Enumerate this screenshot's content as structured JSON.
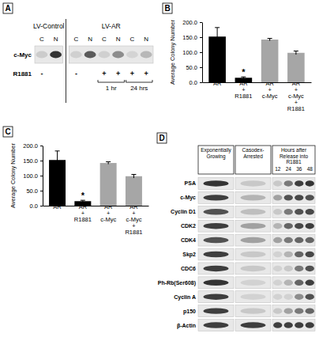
{
  "panel_labels": [
    "A",
    "B",
    "C",
    "D"
  ],
  "chart_data": [
    {
      "type": "bar",
      "categories": [
        "AR",
        "AR + R1881",
        "AR + c-Myc",
        "AR + c-Myc + R1881"
      ],
      "values": [
        152,
        15,
        142,
        98
      ],
      "errors": [
        30,
        3,
        4,
        6
      ],
      "colors": [
        "#000000",
        "#000000",
        "#a6a6a6",
        "#a6a6a6"
      ],
      "y_label": "Average Colony Number",
      "ylim": [
        0,
        200
      ],
      "yticks": [
        {
          "value": 0,
          "label": "0.0"
        },
        {
          "value": 50,
          "label": "50.0"
        },
        {
          "value": 100,
          "label": "100.0"
        },
        {
          "value": 150,
          "label": "150.0"
        },
        {
          "value": 200,
          "label": "200.0"
        }
      ],
      "annotations": [
        {
          "text": "*",
          "category": "AR + R1881"
        }
      ]
    },
    {
      "type": "bar",
      "categories": [
        "AR",
        "AR + R1881",
        "AR + c-Myc",
        "AR + c-Myc + R1881"
      ],
      "values": [
        152,
        15,
        142,
        98
      ],
      "errors": [
        30,
        3,
        4,
        6
      ],
      "colors": [
        "#000000",
        "#000000",
        "#a6a6a6",
        "#a6a6a6"
      ],
      "y_label": "Average Colony Number",
      "ylim": [
        0,
        200
      ],
      "yticks": [
        {
          "value": 0,
          "label": "0.0"
        },
        {
          "value": 50,
          "label": "50.0"
        },
        {
          "value": 100,
          "label": "100.0"
        },
        {
          "value": 150,
          "label": "150.0"
        },
        {
          "value": 200,
          "label": "200.0"
        }
      ],
      "annotations": [
        {
          "text": "*",
          "category": "AR + R1881"
        }
      ]
    }
  ],
  "blot_a": {
    "column_groups": [
      {
        "label": "LV-Control",
        "lanes": 2
      },
      {
        "label": "LV-AR",
        "lanes": 6
      }
    ],
    "lanes": [
      "C",
      "N",
      "C",
      "N",
      "C",
      "N",
      "C",
      "N"
    ],
    "rows": [
      {
        "label": "c-Myc",
        "intensity": [
          0.08,
          0.85,
          0.06,
          0.65,
          0.06,
          0.4,
          0.04,
          0.18
        ]
      }
    ],
    "treatment": {
      "label": "R1881",
      "values": [
        "-",
        null,
        "-",
        null,
        "+",
        "+",
        "+",
        "+"
      ]
    },
    "time_labels": [
      {
        "label": "1 hr",
        "lanes": [
          4,
          5
        ]
      },
      {
        "label": "24 hrs",
        "lanes": [
          6,
          7
        ]
      }
    ]
  },
  "blot_d": {
    "column_groups": [
      {
        "label": "Exponentially Growing",
        "lanes": 1
      },
      {
        "label": "Casodex-Arrested",
        "lanes": 1
      },
      {
        "label": "Hours after Release into R1881",
        "lanes": 4
      }
    ],
    "lanes": [
      null,
      null,
      "12",
      "24",
      "36",
      "48"
    ],
    "rows": [
      {
        "label": "PSA",
        "intensity": [
          0.85,
          0.1,
          0.1,
          0.5,
          0.8,
          0.85
        ]
      },
      {
        "label": "c-Myc",
        "intensity": [
          0.8,
          0.2,
          0.3,
          0.7,
          0.75,
          0.7
        ]
      },
      {
        "label": "Cyclin D1",
        "intensity": [
          0.7,
          0.15,
          0.1,
          0.5,
          0.7,
          0.75
        ]
      },
      {
        "label": "CDK2",
        "intensity": [
          0.8,
          0.3,
          0.2,
          0.6,
          0.75,
          0.8
        ]
      },
      {
        "label": "CDK4",
        "intensity": [
          0.7,
          0.3,
          0.3,
          0.5,
          0.6,
          0.6
        ]
      },
      {
        "label": "Skp2",
        "intensity": [
          0.8,
          0.1,
          0.05,
          0.2,
          0.6,
          0.75
        ]
      },
      {
        "label": "CDC6",
        "intensity": [
          0.8,
          0.1,
          0.05,
          0.1,
          0.5,
          0.7
        ]
      },
      {
        "label": "Ph-Rb(Ser608)",
        "intensity": [
          0.85,
          0.05,
          0.05,
          0.2,
          0.6,
          0.8
        ]
      },
      {
        "label": "Cyclin A",
        "intensity": [
          0.8,
          0.05,
          0.05,
          0.05,
          0.4,
          0.7
        ]
      },
      {
        "label": "p150",
        "intensity": [
          0.8,
          0.1,
          0.1,
          0.3,
          0.5,
          0.6
        ]
      },
      {
        "label": "β-Actin",
        "intensity": [
          0.8,
          0.8,
          0.8,
          0.8,
          0.8,
          0.8
        ]
      }
    ]
  }
}
